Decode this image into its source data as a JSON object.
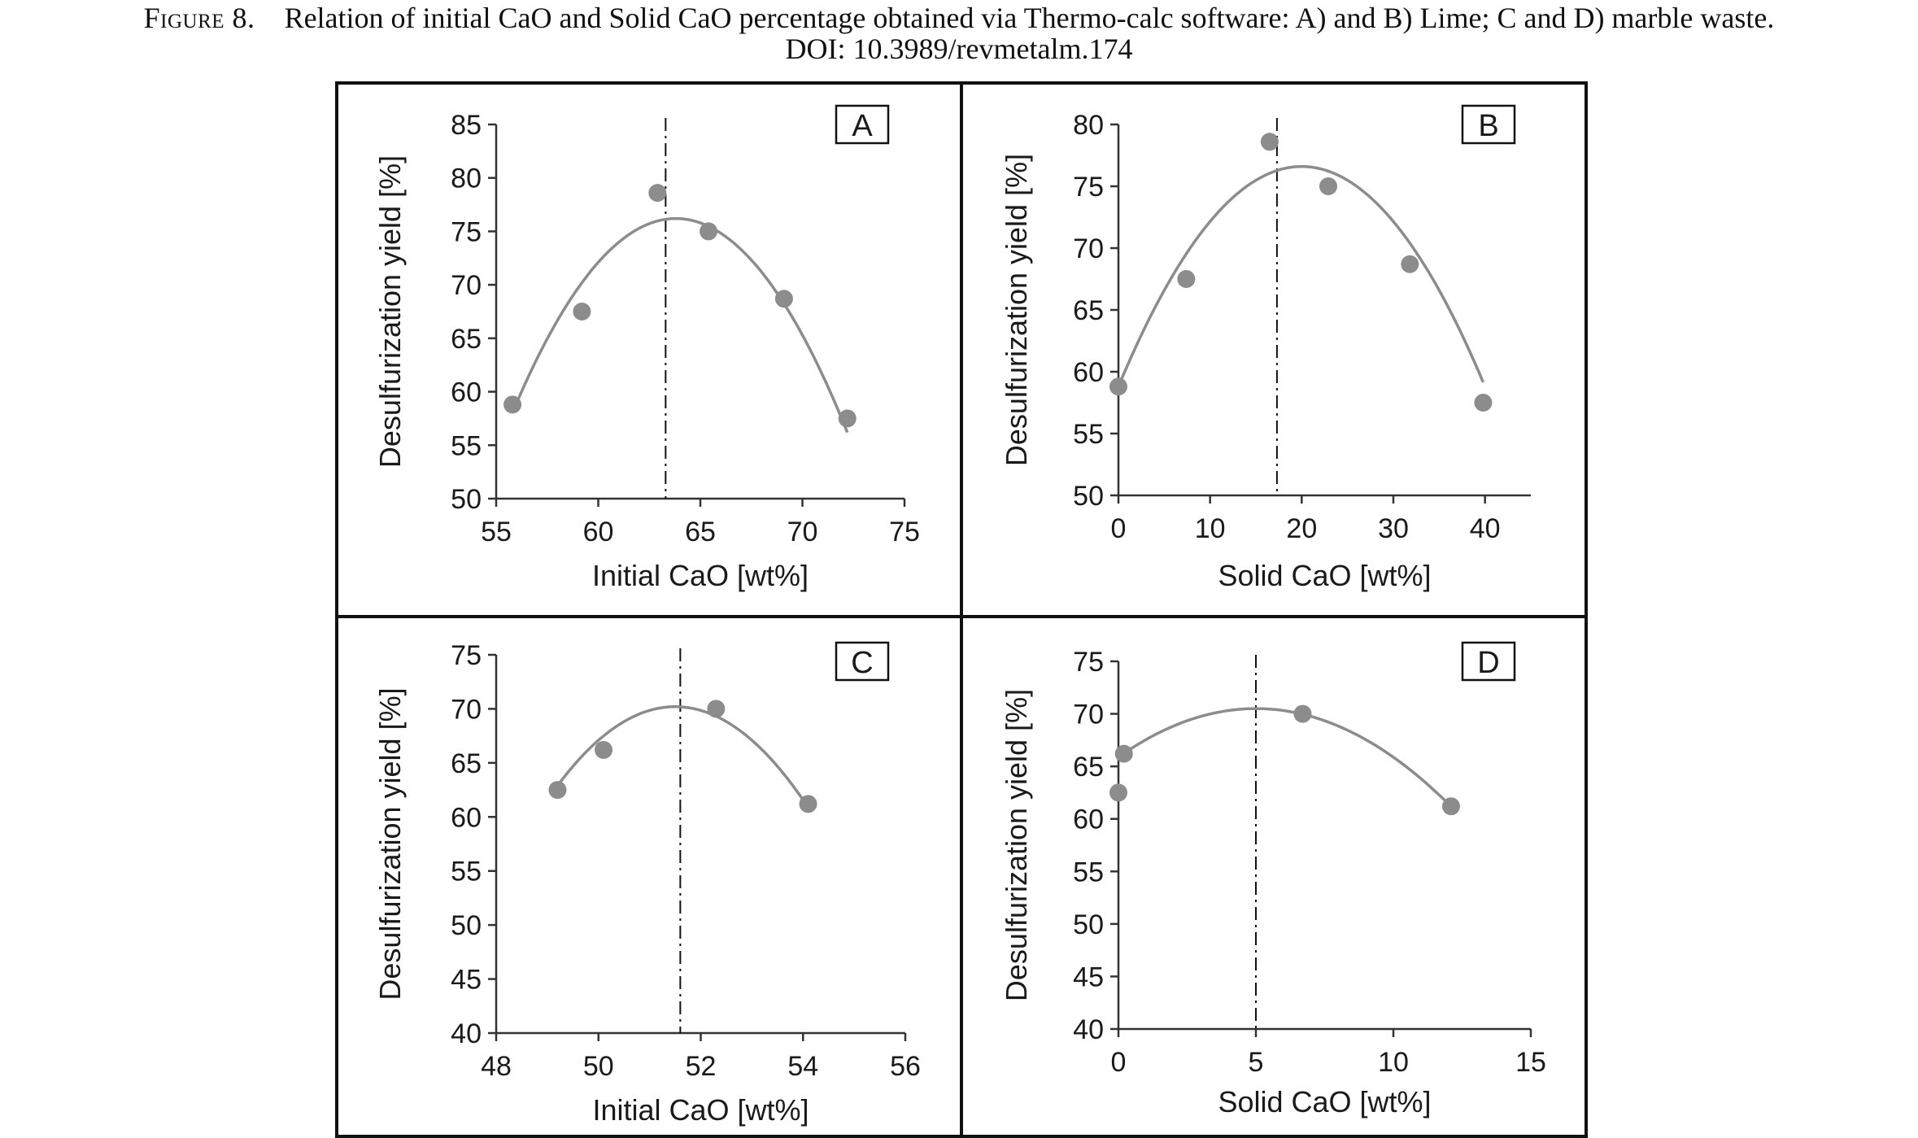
{
  "caption": {
    "label": "Figure 8.",
    "text": "Relation of initial CaO and Solid CaO percentage obtained via Thermo-calc software: A) and B) Lime; C and D) marble waste.",
    "doi": "DOI: 10.3989/revmetalm.174"
  },
  "colors": {
    "points": "#8c8c8c",
    "curve": "#8c8c8c",
    "axis": "#333333",
    "frame": "#111111",
    "vline": "#111111"
  },
  "chart_data": [
    {
      "panel": "A",
      "type": "scatter",
      "xlabel": "Initial CaO [wt%]",
      "ylabel": "Desulfurization yield [%]",
      "xlim": [
        55,
        75
      ],
      "ylim": [
        50,
        85
      ],
      "xticks": [
        55,
        60,
        65,
        70,
        75
      ],
      "yticks": [
        50,
        55,
        60,
        65,
        70,
        75,
        80,
        85
      ],
      "points": [
        {
          "x": 55.8,
          "y": 58.8
        },
        {
          "x": 59.2,
          "y": 67.5
        },
        {
          "x": 62.9,
          "y": 78.6
        },
        {
          "x": 65.4,
          "y": 75.0
        },
        {
          "x": 69.1,
          "y": 68.7
        },
        {
          "x": 72.2,
          "y": 57.5
        }
      ],
      "trendline": {
        "type": "polynomial-2",
        "x_range": [
          55.8,
          72.2
        ],
        "vertex_x": 63.8,
        "vertex_y": 76.2,
        "a": -0.2835
      },
      "vline_x": 63.3
    },
    {
      "panel": "B",
      "type": "scatter",
      "xlabel": "Solid CaO [wt%]",
      "ylabel": "Desulfurization yield [%]",
      "xlim": [
        0,
        45
      ],
      "ylim": [
        50,
        80
      ],
      "xticks": [
        0,
        10,
        20,
        30,
        40
      ],
      "yticks": [
        50,
        55,
        60,
        65,
        70,
        75,
        80
      ],
      "points": [
        {
          "x": 0.0,
          "y": 58.8
        },
        {
          "x": 7.4,
          "y": 67.5
        },
        {
          "x": 16.5,
          "y": 78.6
        },
        {
          "x": 22.9,
          "y": 75.0
        },
        {
          "x": 31.8,
          "y": 68.7
        },
        {
          "x": 39.8,
          "y": 57.5
        }
      ],
      "trendline": {
        "type": "polynomial-2",
        "x_range": [
          0,
          39.8
        ],
        "vertex_x": 20.0,
        "vertex_y": 76.6,
        "a": -0.0445
      },
      "vline_x": 17.3
    },
    {
      "panel": "C",
      "type": "scatter",
      "xlabel": "Initial CaO [wt%]",
      "ylabel": "Desulfurization yield [%]",
      "xlim": [
        48,
        56
      ],
      "ylim": [
        40,
        75
      ],
      "xticks": [
        48,
        50,
        52,
        54,
        56
      ],
      "yticks": [
        40,
        45,
        50,
        55,
        60,
        65,
        70,
        75
      ],
      "points": [
        {
          "x": 49.2,
          "y": 62.5
        },
        {
          "x": 50.1,
          "y": 66.2
        },
        {
          "x": 52.3,
          "y": 70.0
        },
        {
          "x": 54.1,
          "y": 61.2
        }
      ],
      "trendline": {
        "type": "polynomial-2",
        "x_range": [
          49.2,
          54.1
        ],
        "vertex_x": 51.5,
        "vertex_y": 70.2,
        "a": -1.38
      },
      "vline_x": 51.6
    },
    {
      "panel": "D",
      "type": "scatter",
      "xlabel": "Solid CaO [wt%]",
      "ylabel": "Desulfurization yield [%]",
      "xlim": [
        0,
        15
      ],
      "ylim": [
        40,
        75
      ],
      "xticks": [
        0,
        5,
        10,
        15
      ],
      "yticks": [
        40,
        45,
        50,
        55,
        60,
        65,
        70,
        75
      ],
      "points": [
        {
          "x": 0.0,
          "y": 62.5
        },
        {
          "x": 0.2,
          "y": 66.2
        },
        {
          "x": 6.7,
          "y": 70.0
        },
        {
          "x": 12.1,
          "y": 61.2
        }
      ],
      "trendline": {
        "type": "polynomial-2",
        "x_range": [
          0,
          12.1
        ],
        "vertex_x": 5.0,
        "vertex_y": 70.5,
        "a": -0.185
      },
      "vline_x": 5.0
    }
  ]
}
